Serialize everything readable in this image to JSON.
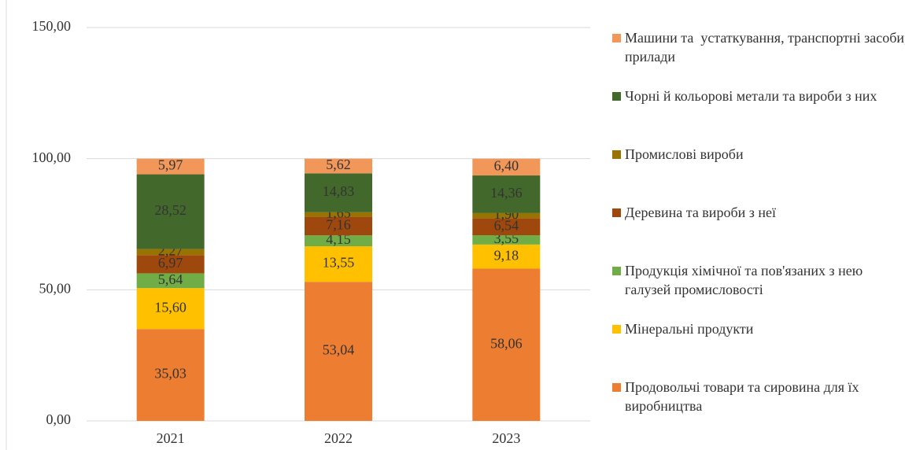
{
  "chart_data": {
    "type": "stacked_bar",
    "categories": [
      "2021",
      "2022",
      "2023"
    ],
    "ylim": [
      0,
      150
    ],
    "yticks": [
      {
        "value": 0,
        "label": "0,00"
      },
      {
        "value": 50,
        "label": "50,00"
      },
      {
        "value": 100,
        "label": "100,00"
      },
      {
        "value": 150,
        "label": "150,00"
      }
    ],
    "grid": true,
    "legend": "right",
    "series": [
      {
        "name": "Продовольчі товари та сировина для їх виробництва",
        "color": "#ed7d31",
        "values": [
          35.03,
          53.04,
          58.06
        ],
        "value_labels": [
          "35,03",
          "53,04",
          "58,06"
        ]
      },
      {
        "name": "Мінеральні продукти",
        "color": "#ffc000",
        "values": [
          15.6,
          13.55,
          9.18
        ],
        "value_labels": [
          "15,60",
          "13,55",
          "9,18"
        ]
      },
      {
        "name": "Продукція хімічної та пов'язаних з нею галузей промисловості",
        "color": "#70ad47",
        "values": [
          5.64,
          4.15,
          3.55
        ],
        "value_labels": [
          "5,64",
          "4,15",
          "3,55"
        ]
      },
      {
        "name": "Деревина та вироби з неї",
        "color": "#9e480e",
        "values": [
          6.97,
          7.16,
          6.54
        ],
        "value_labels": [
          "6,97",
          "7,16",
          "6,54"
        ]
      },
      {
        "name": "Промислові вироби",
        "color": "#997300",
        "values": [
          2.27,
          1.65,
          1.9
        ],
        "value_labels": [
          "2,27",
          "1,65",
          "1,90"
        ]
      },
      {
        "name": "Чорні й кольорові метали та вироби з них",
        "color": "#43682b",
        "values": [
          28.52,
          14.83,
          14.36
        ],
        "value_labels": [
          "28,52",
          "14,83",
          "14,36"
        ]
      },
      {
        "name": "Машини та  устаткування, транспортні засоби, прилади",
        "color": "#f1975a",
        "values": [
          5.97,
          5.62,
          6.4
        ],
        "value_labels": [
          "5,97",
          "5,62",
          "6,40"
        ]
      }
    ]
  }
}
